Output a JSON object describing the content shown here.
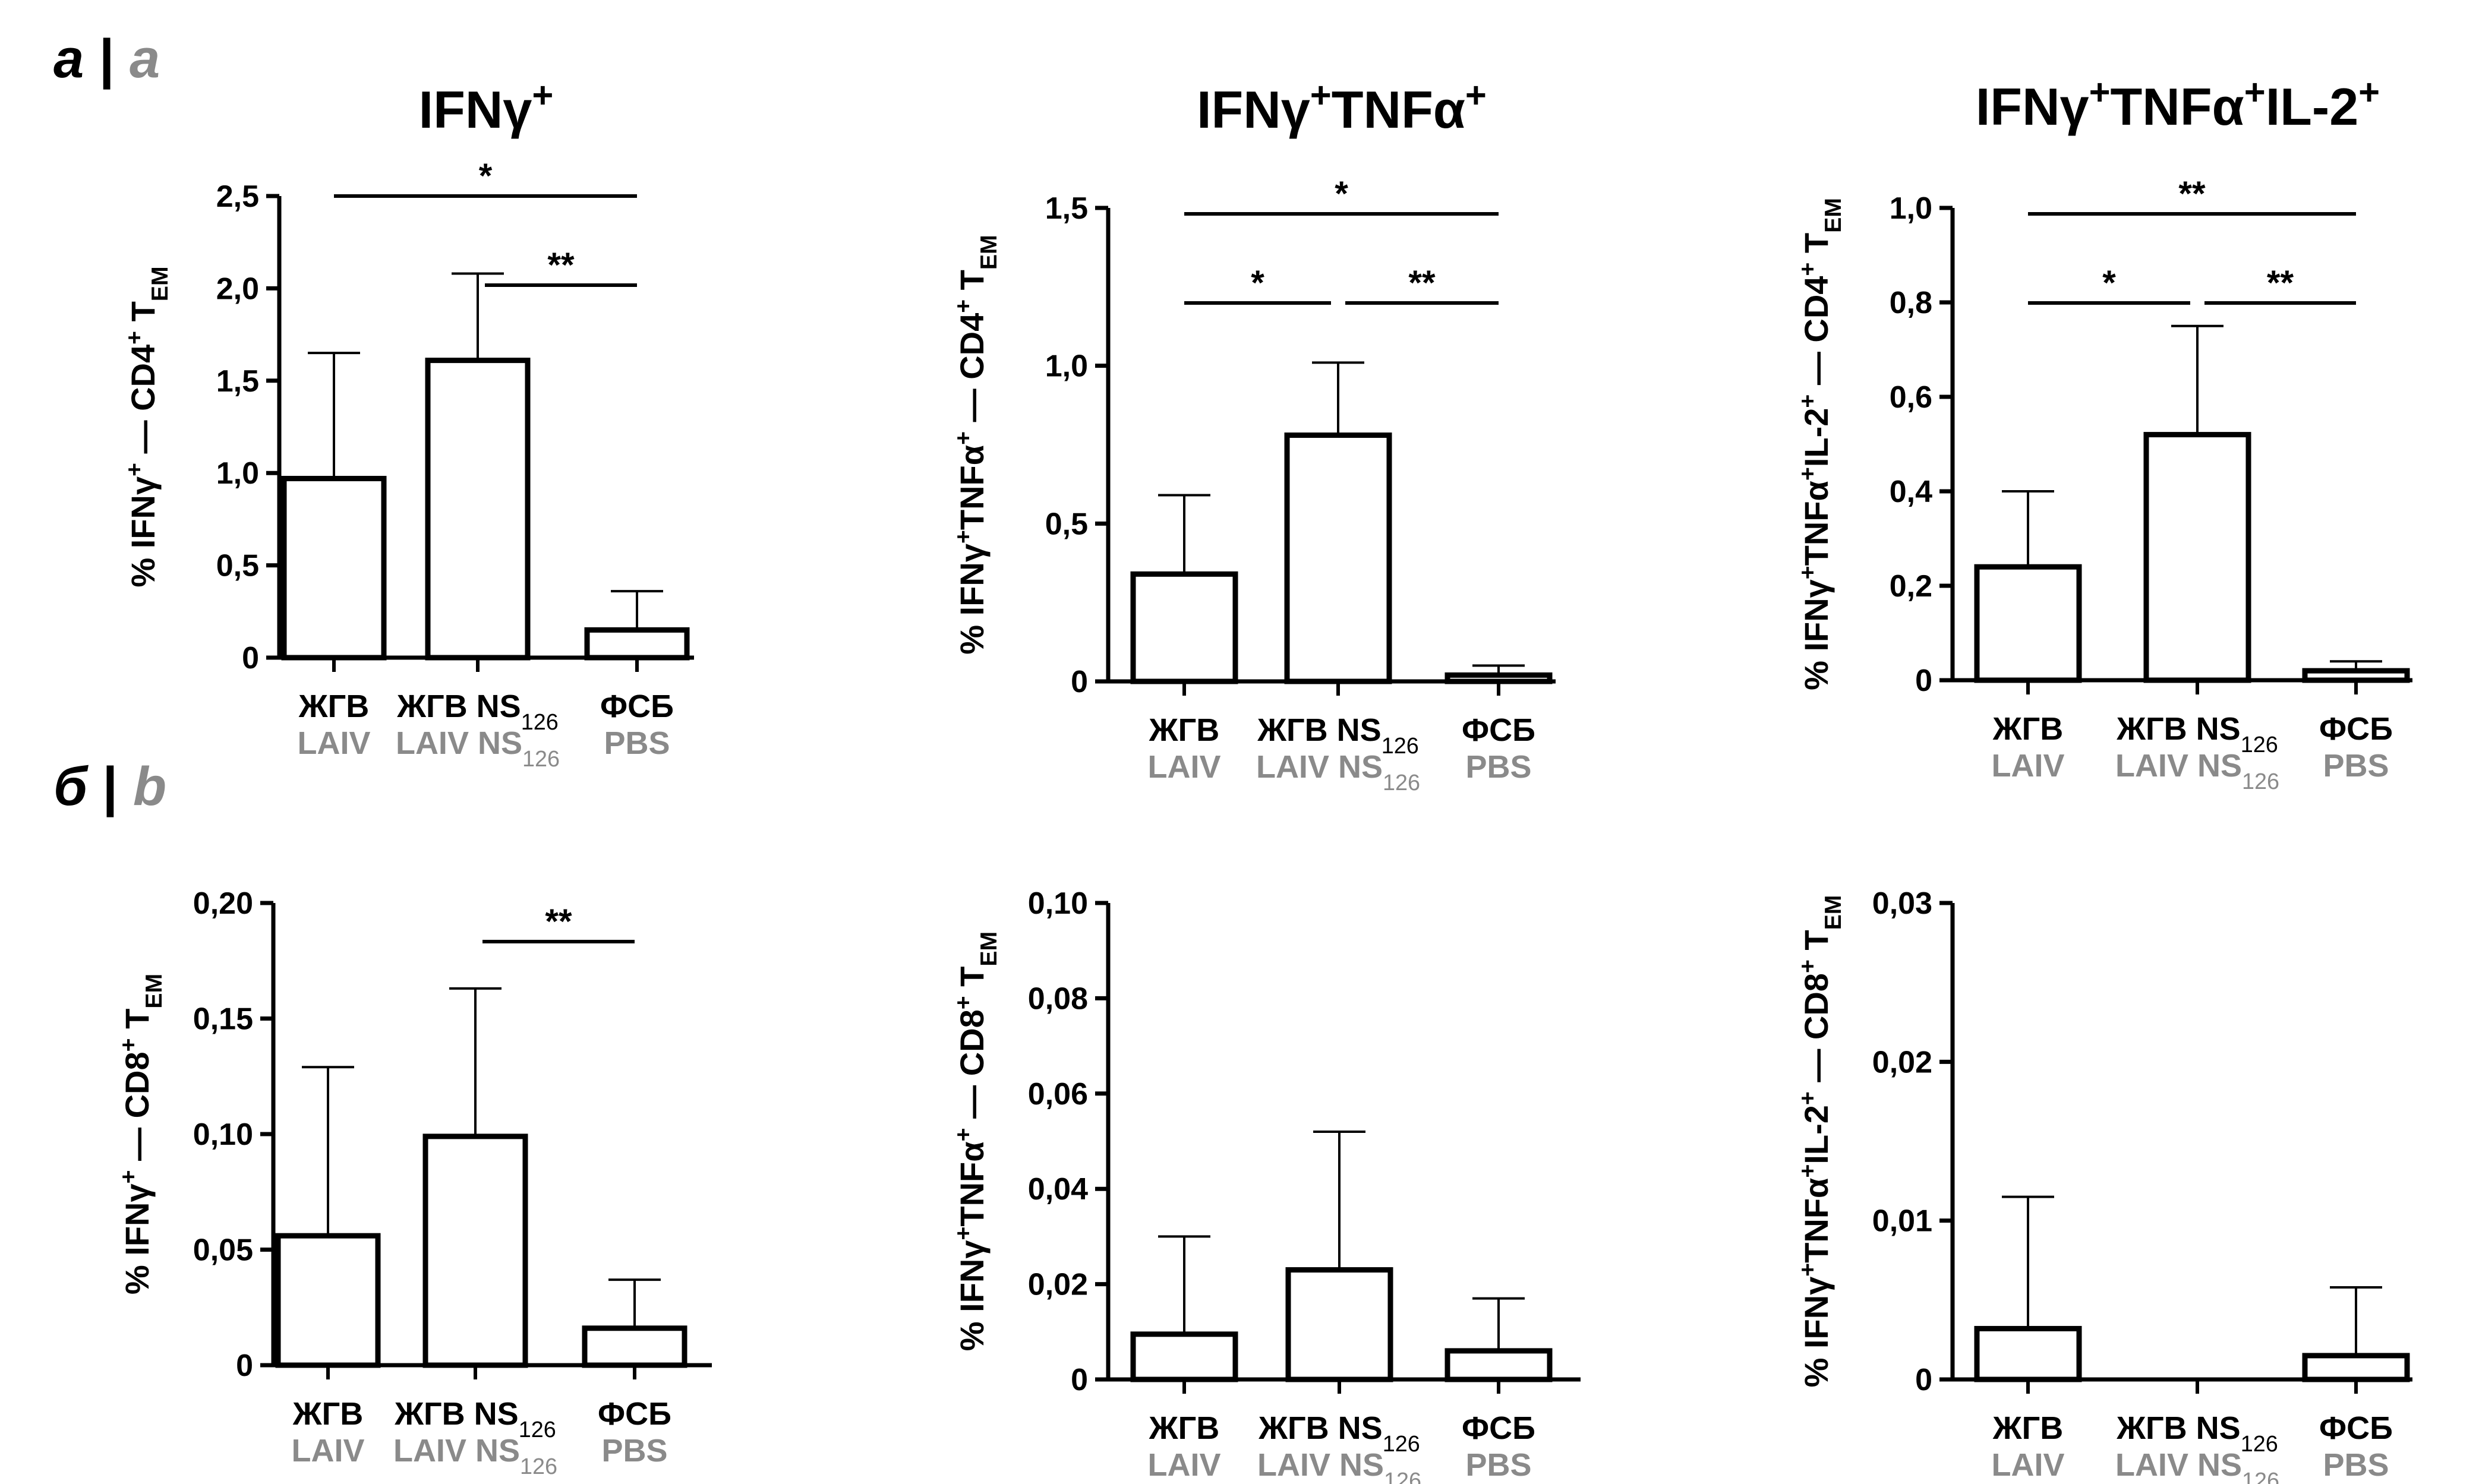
{
  "panel_labels": [
    {
      "ru": "а",
      "sep": " | ",
      "en": "a"
    },
    {
      "ru": "б",
      "sep": " | ",
      "en": "b"
    }
  ],
  "colors": {
    "bar_stroke": "#000000",
    "bar_fill": "#ffffff",
    "english_label": "#8a8a8a"
  },
  "categories": [
    {
      "ru": "ЖГВ",
      "en": "LAIV"
    },
    {
      "ru": "ЖГВ NS",
      "ru_sub": "126",
      "en": "LAIV NS",
      "en_sub": "126"
    },
    {
      "ru": "ФСБ",
      "en": "PBS"
    }
  ],
  "chart_data": [
    {
      "type": "bar",
      "title": "IFNγ+",
      "ylabel": "% IFNγ+ — CD4+ TEM",
      "ylim": [
        0,
        2.5
      ],
      "yticks": [
        "0",
        "0,5",
        "1,0",
        "1,5",
        "2,0",
        "2,5"
      ],
      "series": [
        {
          "values": [
            0.97,
            1.61,
            0.15
          ],
          "errors_upper": [
            1.65,
            2.08,
            0.36
          ]
        }
      ],
      "significance": [
        {
          "from": 0,
          "to": 2,
          "label": "*"
        },
        {
          "from": 1,
          "to": 2,
          "label": "**"
        }
      ]
    },
    {
      "type": "bar",
      "title": "IFNγ+TNFα+",
      "ylabel": "% IFNγ+TNFα+ — CD4+ TEM",
      "ylim": [
        0,
        1.5
      ],
      "yticks": [
        "0",
        "0,5",
        "1,0",
        "1,5"
      ],
      "series": [
        {
          "values": [
            0.34,
            0.78,
            0.02
          ],
          "errors_upper": [
            0.59,
            1.01,
            0.05
          ]
        }
      ],
      "significance": [
        {
          "from": 0,
          "to": 2,
          "label": "*"
        },
        {
          "from": 0,
          "to": 1,
          "label": "*"
        },
        {
          "from": 1,
          "to": 2,
          "label": "**"
        }
      ]
    },
    {
      "type": "bar",
      "title": "IFNγ+TNFα+IL-2+",
      "ylabel": "% IFNγ+TNFα+IL-2+ — CD4+ TEM",
      "ylim": [
        0,
        1.0
      ],
      "yticks": [
        "0",
        "0,2",
        "0,4",
        "0,6",
        "0,8",
        "1,0"
      ],
      "series": [
        {
          "values": [
            0.24,
            0.52,
            0.02
          ],
          "errors_upper": [
            0.4,
            0.75,
            0.04
          ]
        }
      ],
      "significance": [
        {
          "from": 0,
          "to": 2,
          "label": "**"
        },
        {
          "from": 0,
          "to": 1,
          "label": "*"
        },
        {
          "from": 1,
          "to": 2,
          "label": "**"
        }
      ]
    },
    {
      "type": "bar",
      "title": "",
      "ylabel": "% IFNγ+ — CD8+ TEM",
      "ylim": [
        0,
        0.2
      ],
      "yticks": [
        "0",
        "0,05",
        "0,10",
        "0,15",
        "0,20"
      ],
      "series": [
        {
          "values": [
            0.056,
            0.099,
            0.016
          ],
          "errors_upper": [
            0.129,
            0.163,
            0.037
          ]
        }
      ],
      "significance": [
        {
          "from": 1,
          "to": 2,
          "label": "**"
        }
      ]
    },
    {
      "type": "bar",
      "title": "",
      "ylabel": "% IFNγ+TNFα+ — CD8+ TEM",
      "ylim": [
        0,
        0.1
      ],
      "yticks": [
        "0",
        "0,02",
        "0,04",
        "0,06",
        "0,08",
        "0,10"
      ],
      "series": [
        {
          "values": [
            0.0095,
            0.023,
            0.006
          ],
          "errors_upper": [
            0.03,
            0.052,
            0.017
          ]
        }
      ],
      "significance": []
    },
    {
      "type": "bar",
      "title": "",
      "ylabel": "% IFNγ+TNFα+IL-2+ — CD8+ TEM",
      "ylim": [
        0,
        0.03
      ],
      "yticks": [
        "0",
        "0,01",
        "0,02",
        "0,03"
      ],
      "series": [
        {
          "values": [
            0.0032,
            0.0,
            0.0015
          ],
          "errors_upper": [
            0.0115,
            0.0,
            0.0058
          ]
        }
      ],
      "significance": []
    }
  ]
}
